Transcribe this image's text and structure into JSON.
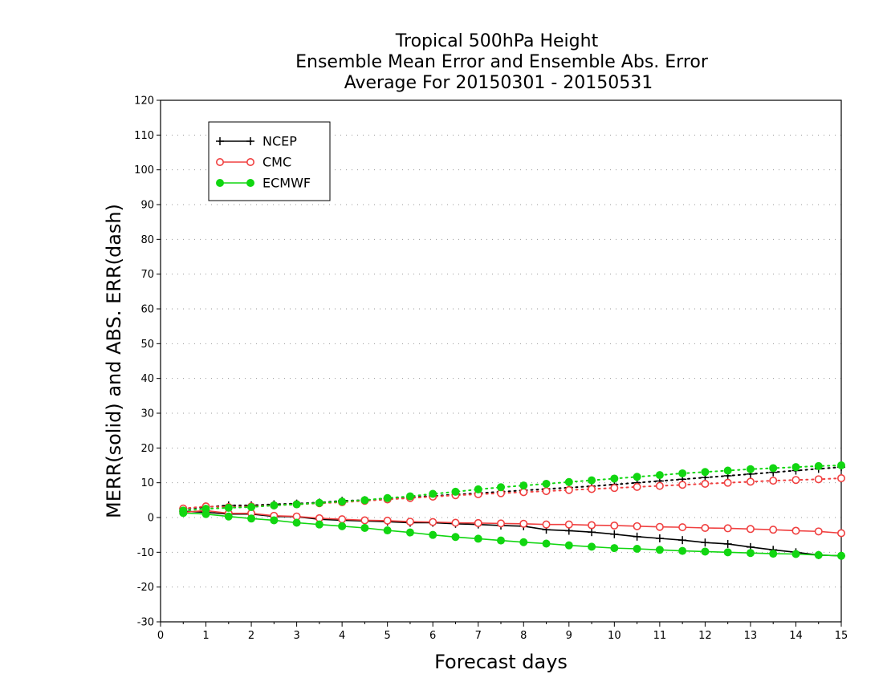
{
  "chart_data": {
    "type": "line",
    "title_lines": [
      "Tropical 500hPa Height",
      "Ensemble Mean Error and Ensemble Abs. Error",
      "Average For 20150301 - 20150531"
    ],
    "xlabel": "Forecast days",
    "ylabel": "MERR(solid) and ABS. ERR(dash)",
    "xlim": [
      0,
      15
    ],
    "ylim": [
      -30,
      120
    ],
    "xticks": [
      0,
      1,
      2,
      3,
      4,
      5,
      6,
      7,
      8,
      9,
      10,
      11,
      12,
      13,
      14,
      15
    ],
    "yticks": [
      -30,
      -20,
      -10,
      0,
      10,
      20,
      30,
      40,
      50,
      60,
      70,
      80,
      90,
      100,
      110,
      120
    ],
    "grid": true,
    "legend_position": "top-left",
    "x": [
      0.5,
      1,
      1.5,
      2,
      2.5,
      3,
      3.5,
      4,
      4.5,
      5,
      5.5,
      6,
      6.5,
      7,
      7.5,
      8,
      8.5,
      9,
      9.5,
      10,
      10.5,
      11,
      11.5,
      12,
      12.5,
      13,
      13.5,
      14,
      14.5,
      15
    ],
    "series": [
      {
        "name": "NCEP",
        "color": "#000000",
        "marker": "plus",
        "merr": [
          1.8,
          1.5,
          1.0,
          1.0,
          0.3,
          0.2,
          -0.5,
          -0.8,
          -1.0,
          -1.2,
          -1.5,
          -1.5,
          -1.8,
          -2.0,
          -2.3,
          -2.5,
          -3.5,
          -3.8,
          -4.2,
          -4.8,
          -5.5,
          -6.0,
          -6.5,
          -7.2,
          -7.6,
          -8.5,
          -9.3,
          -10.0,
          -10.8,
          -11.0
        ],
        "abs_err": [
          2.5,
          3.0,
          3.5,
          3.5,
          3.8,
          4.0,
          4.3,
          4.8,
          5.0,
          5.5,
          5.8,
          6.2,
          6.6,
          7.0,
          7.4,
          7.8,
          8.2,
          8.6,
          9.0,
          9.5,
          10.0,
          10.5,
          11.0,
          11.5,
          12.0,
          12.5,
          13.0,
          13.5,
          14.0,
          14.5
        ]
      },
      {
        "name": "CMC",
        "color": "#f04040",
        "marker": "open-circle",
        "merr": [
          1.5,
          2.0,
          1.2,
          1.2,
          0.5,
          0.3,
          -0.2,
          -0.5,
          -0.8,
          -0.9,
          -1.2,
          -1.3,
          -1.5,
          -1.6,
          -1.7,
          -1.8,
          -2.0,
          -2.0,
          -2.2,
          -2.3,
          -2.5,
          -2.7,
          -2.8,
          -3.0,
          -3.1,
          -3.3,
          -3.5,
          -3.8,
          -4.0,
          -4.5
        ],
        "abs_err": [
          2.6,
          3.2,
          3.0,
          3.2,
          3.5,
          3.8,
          4.1,
          4.4,
          4.8,
          5.2,
          5.6,
          6.0,
          6.4,
          6.7,
          7.0,
          7.3,
          7.6,
          7.9,
          8.2,
          8.5,
          8.8,
          9.1,
          9.4,
          9.7,
          10.0,
          10.3,
          10.6,
          10.8,
          11.0,
          11.3
        ]
      },
      {
        "name": "ECMWF",
        "color": "#11d611",
        "marker": "filled-circle",
        "merr": [
          1.3,
          1.0,
          0.3,
          -0.3,
          -0.8,
          -1.5,
          -2.0,
          -2.5,
          -3.0,
          -3.7,
          -4.3,
          -5.0,
          -5.6,
          -6.1,
          -6.6,
          -7.1,
          -7.5,
          -8.0,
          -8.4,
          -8.8,
          -9.0,
          -9.3,
          -9.6,
          -9.8,
          -10.0,
          -10.2,
          -10.4,
          -10.5,
          -10.8,
          -11.0
        ],
        "abs_err": [
          2.0,
          2.5,
          2.8,
          3.0,
          3.5,
          3.8,
          4.2,
          4.6,
          5.0,
          5.6,
          6.1,
          6.8,
          7.4,
          8.1,
          8.7,
          9.2,
          9.7,
          10.2,
          10.7,
          11.2,
          11.7,
          12.2,
          12.7,
          13.1,
          13.5,
          13.9,
          14.2,
          14.5,
          14.8,
          15.0
        ]
      }
    ]
  }
}
